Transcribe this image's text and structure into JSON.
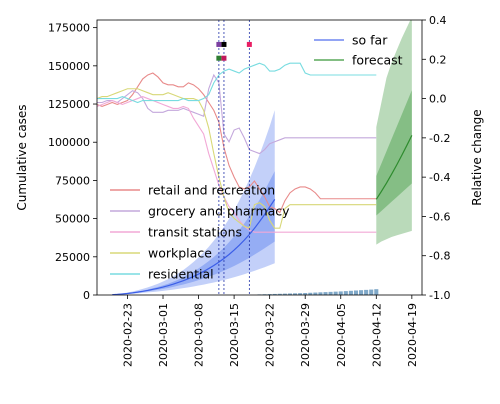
{
  "chart_data": {
    "type": "line",
    "title": "",
    "xlabel": "",
    "ylabel_left": "Cumulative cases",
    "ylabel_right": "Relative change",
    "x_tick_labels": [
      "2020-02-23",
      "2020-03-01",
      "2020-03-08",
      "2020-03-15",
      "2020-03-22",
      "2020-03-29",
      "2020-04-05",
      "2020-04-12",
      "2020-04-19"
    ],
    "x_range": [
      "2020-02-17",
      "2020-04-21"
    ],
    "ylim_left": [
      0,
      180000
    ],
    "ylim_right": [
      -1.0,
      0.4
    ],
    "y_ticks_left": [
      "0",
      "25000",
      "50000",
      "75000",
      "100000",
      "125000",
      "150000",
      "175000"
    ],
    "y_ticks_right": [
      "-1.0",
      "-0.8",
      "-0.6",
      "-0.4",
      "-0.2",
      "0.0",
      "0.2",
      "0.4"
    ],
    "vertical_lines": [
      "2020-03-12",
      "2020-03-13",
      "2020-03-18"
    ],
    "markers": [
      {
        "date": "2020-03-12",
        "y": 164000,
        "color": "#7b3fa0"
      },
      {
        "date": "2020-03-12",
        "y": 155000,
        "color": "#2e7d32"
      },
      {
        "date": "2020-03-13",
        "y": 164000,
        "color": "#000000"
      },
      {
        "date": "2020-03-13",
        "y": 155000,
        "color": "#c2185b"
      },
      {
        "date": "2020-03-18",
        "y": 164000,
        "color": "#e91e63"
      }
    ],
    "legend_top": [
      {
        "label": "so far",
        "color": "#6f86f0"
      },
      {
        "label": "forecast",
        "color": "#5aa85a"
      }
    ],
    "legend_mobility": [
      {
        "label": "retail and recreation",
        "color": "#e88a8a"
      },
      {
        "label": "grocery and pharmacy",
        "color": "#c4a8dc"
      },
      {
        "label": "transit stations",
        "color": "#f2a8d6"
      },
      {
        "label": "workplace",
        "color": "#d8d878"
      },
      {
        "label": "residential",
        "color": "#78dce0"
      }
    ],
    "series": [
      {
        "name": "so far",
        "axis": "left",
        "color": "#3b5ee8",
        "band_color": "#6f8ff0",
        "start": "2020-02-20",
        "median": [
          200,
          400,
          700,
          1000,
          1400,
          1900,
          2400,
          3000,
          3700,
          4400,
          5200,
          6100,
          7100,
          8200,
          9400,
          10700,
          12100,
          13700,
          15400,
          17300,
          19300,
          21500,
          23900,
          26500,
          29400,
          32500,
          35900,
          39600,
          43600,
          48000,
          52600,
          57600,
          62600
        ],
        "band50": [
          [
            150,
            250
          ],
          [
            300,
            500
          ],
          [
            550,
            850
          ],
          [
            800,
            1200
          ],
          [
            1100,
            1700
          ],
          [
            1500,
            2300
          ],
          [
            1900,
            2900
          ],
          [
            2400,
            3600
          ],
          [
            2900,
            4400
          ],
          [
            3400,
            5300
          ],
          [
            4000,
            6300
          ],
          [
            4600,
            7400
          ],
          [
            5300,
            8700
          ],
          [
            6100,
            10100
          ],
          [
            6900,
            11700
          ],
          [
            7800,
            13400
          ],
          [
            8700,
            15300
          ],
          [
            9700,
            17400
          ],
          [
            10800,
            19700
          ],
          [
            12000,
            22200
          ],
          [
            13200,
            24900
          ],
          [
            14500,
            27800
          ],
          [
            15900,
            31000
          ],
          [
            17400,
            34500
          ],
          [
            19000,
            38300
          ],
          [
            20700,
            42400
          ],
          [
            22500,
            46800
          ],
          [
            24400,
            51600
          ],
          [
            26400,
            56700
          ],
          [
            28500,
            62300
          ],
          [
            30600,
            68200
          ],
          [
            32800,
            74600
          ],
          [
            35000,
            81000
          ]
        ],
        "band95": [
          [
            100,
            320
          ],
          [
            200,
            650
          ],
          [
            400,
            1100
          ],
          [
            600,
            1600
          ],
          [
            800,
            2300
          ],
          [
            1100,
            3100
          ],
          [
            1400,
            4000
          ],
          [
            1700,
            5000
          ],
          [
            2000,
            6100
          ],
          [
            2300,
            7400
          ],
          [
            2700,
            8800
          ],
          [
            3100,
            10400
          ],
          [
            3500,
            12200
          ],
          [
            4000,
            14200
          ],
          [
            4500,
            16400
          ],
          [
            5000,
            18900
          ],
          [
            5600,
            21600
          ],
          [
            6200,
            24600
          ],
          [
            6800,
            27900
          ],
          [
            7500,
            31500
          ],
          [
            8200,
            35500
          ],
          [
            9000,
            39800
          ],
          [
            9800,
            44600
          ],
          [
            10700,
            49800
          ],
          [
            11600,
            55500
          ],
          [
            12600,
            61700
          ],
          [
            13600,
            68400
          ],
          [
            14700,
            75600
          ],
          [
            15800,
            83400
          ],
          [
            17000,
            91800
          ],
          [
            18200,
            100800
          ],
          [
            19500,
            110400
          ],
          [
            20800,
            121000
          ]
        ]
      },
      {
        "name": "forecast",
        "axis": "left",
        "color": "#2e8b2e",
        "band_color": "#5aa85a",
        "start": "2020-04-12",
        "median": [
          62600,
          67800,
          73200,
          79000,
          85000,
          91300,
          97800,
          104500
        ],
        "band50": [
          [
            52000,
            78000
          ],
          [
            55000,
            86000
          ],
          [
            58000,
            94000
          ],
          [
            61000,
            102000
          ],
          [
            64000,
            110000
          ],
          [
            67000,
            118000
          ],
          [
            70000,
            126000
          ],
          [
            73000,
            134000
          ]
        ],
        "band95": [
          [
            33000,
            110000
          ],
          [
            35000,
            126000
          ],
          [
            36500,
            142000
          ],
          [
            38000,
            152000
          ],
          [
            39000,
            160000
          ],
          [
            40000,
            168000
          ],
          [
            41000,
            175000
          ],
          [
            42000,
            182000
          ]
        ]
      },
      {
        "name": "retail and recreation",
        "axis": "right",
        "color": "#e88a8a",
        "start": "2020-02-16",
        "values": [
          -0.01,
          -0.03,
          -0.04,
          -0.03,
          -0.02,
          -0.03,
          -0.02,
          -0.01,
          0.02,
          0.06,
          0.1,
          0.12,
          0.13,
          0.11,
          0.08,
          0.07,
          0.07,
          0.06,
          0.06,
          0.08,
          0.07,
          0.05,
          0.02,
          -0.02,
          -0.06,
          -0.12,
          -0.25,
          -0.34,
          -0.4,
          -0.45,
          -0.46,
          -0.45,
          -0.42,
          -0.46,
          -0.5,
          -0.55,
          -0.56,
          -0.58,
          -0.52,
          -0.48,
          -0.46,
          -0.45,
          -0.45,
          -0.46,
          -0.48,
          -0.51,
          -0.51,
          -0.51,
          -0.51,
          -0.51,
          -0.51,
          -0.51,
          -0.51,
          -0.51,
          -0.51,
          -0.51,
          -0.51
        ]
      },
      {
        "name": "grocery and pharmacy",
        "axis": "right",
        "color": "#c4a8dc",
        "start": "2020-02-16",
        "values": [
          -0.01,
          -0.02,
          -0.02,
          -0.01,
          -0.01,
          -0.02,
          0.0,
          0.02,
          0.04,
          0.03,
          0.0,
          -0.05,
          -0.07,
          -0.07,
          -0.07,
          -0.06,
          -0.06,
          -0.06,
          -0.05,
          -0.06,
          -0.07,
          -0.08,
          -0.09,
          0.05,
          0.12,
          0.08,
          -0.18,
          -0.22,
          -0.16,
          -0.15,
          -0.2,
          -0.26,
          -0.27,
          -0.28,
          -0.26,
          -0.23,
          -0.22,
          -0.21,
          -0.2,
          -0.2,
          -0.2,
          -0.2,
          -0.2,
          -0.2,
          -0.2,
          -0.2,
          -0.2,
          -0.2,
          -0.2,
          -0.2,
          -0.2,
          -0.2,
          -0.2,
          -0.2,
          -0.2,
          -0.2,
          -0.2
        ]
      },
      {
        "name": "transit stations",
        "axis": "right",
        "color": "#f2a8d6",
        "start": "2020-02-16",
        "values": [
          -0.02,
          -0.04,
          -0.03,
          -0.02,
          -0.01,
          -0.02,
          -0.03,
          -0.02,
          -0.01,
          0.0,
          0.01,
          0.0,
          -0.01,
          -0.02,
          -0.03,
          -0.04,
          -0.05,
          -0.05,
          -0.04,
          -0.05,
          -0.1,
          -0.14,
          -0.18,
          -0.28,
          -0.36,
          -0.44,
          -0.5,
          -0.55,
          -0.58,
          -0.62,
          -0.65,
          -0.67,
          -0.68,
          -0.68,
          -0.68,
          -0.68,
          -0.68,
          -0.68,
          -0.68,
          -0.68,
          -0.68,
          -0.68,
          -0.68,
          -0.68,
          -0.68,
          -0.68,
          -0.68,
          -0.68,
          -0.68,
          -0.68,
          -0.68,
          -0.68,
          -0.68,
          -0.68,
          -0.68,
          -0.68,
          -0.68
        ]
      },
      {
        "name": "workplace",
        "axis": "right",
        "color": "#d8d878",
        "start": "2020-02-16",
        "values": [
          0.0,
          0.0,
          0.01,
          0.01,
          0.02,
          0.03,
          0.04,
          0.05,
          0.05,
          0.05,
          0.04,
          0.03,
          0.02,
          0.02,
          0.02,
          0.03,
          0.02,
          0.01,
          0.0,
          0.0,
          0.0,
          -0.01,
          -0.06,
          -0.15,
          -0.28,
          -0.4,
          -0.5,
          -0.58,
          -0.61,
          -0.63,
          -0.65,
          -0.66,
          -0.54,
          -0.53,
          -0.55,
          -0.62,
          -0.66,
          -0.66,
          -0.56,
          -0.54,
          -0.54,
          -0.54,
          -0.54,
          -0.54,
          -0.54,
          -0.54,
          -0.54,
          -0.54,
          -0.54,
          -0.54,
          -0.54,
          -0.54,
          -0.54,
          -0.54,
          -0.54,
          -0.54,
          -0.54
        ]
      },
      {
        "name": "residential",
        "axis": "right",
        "color": "#78dce0",
        "start": "2020-02-16",
        "values": [
          0.0,
          0.0,
          0.0,
          0.0,
          0.0,
          0.0,
          0.01,
          0.0,
          -0.01,
          -0.02,
          -0.01,
          -0.01,
          -0.01,
          -0.01,
          -0.01,
          -0.01,
          -0.01,
          -0.01,
          0.0,
          -0.01,
          -0.01,
          -0.01,
          0.0,
          0.02,
          0.08,
          0.12,
          0.14,
          0.15,
          0.14,
          0.13,
          0.15,
          0.16,
          0.17,
          0.18,
          0.17,
          0.14,
          0.14,
          0.15,
          0.17,
          0.18,
          0.18,
          0.18,
          0.13,
          0.12,
          0.12,
          0.12,
          0.12,
          0.12,
          0.12,
          0.12,
          0.12,
          0.12,
          0.12,
          0.12,
          0.12,
          0.12,
          0.12
        ]
      },
      {
        "name": "daily new cases",
        "axis": "left",
        "type": "bar",
        "color": "#7fa8c8",
        "start": "2020-03-20",
        "values": [
          400,
          500,
          600,
          700,
          800,
          900,
          1000,
          1100,
          1200,
          1300,
          1450,
          1600,
          1750,
          1900,
          2050,
          2200,
          2350,
          2550,
          2750,
          2950,
          3150,
          3350,
          3550,
          3800
        ]
      }
    ]
  }
}
